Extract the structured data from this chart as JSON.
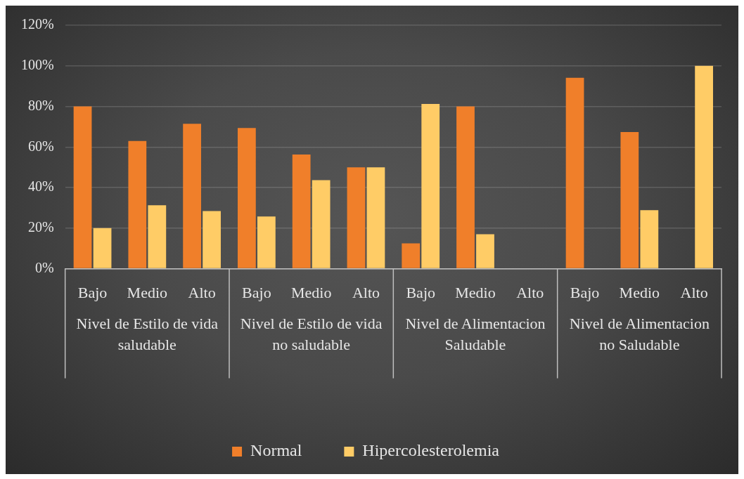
{
  "chart_data": {
    "type": "bar",
    "categories": [
      "Bajo",
      "Medio",
      "Alto",
      "Bajo",
      "Medio",
      "Alto",
      "Bajo",
      "Medio",
      "Alto",
      "Bajo",
      "Medio",
      "Alto"
    ],
    "series": [
      {
        "name": "Normal",
        "color": "#f07f2a",
        "values": [
          80,
          63,
          71.4,
          69.4,
          56.3,
          50,
          12.5,
          80,
          0,
          94.1,
          67.4,
          0
        ]
      },
      {
        "name": "Hipercolesterolemia",
        "color": "#ffcc66",
        "values": [
          20,
          31.3,
          28.4,
          25.7,
          43.7,
          50,
          81.2,
          17,
          0,
          0,
          28.9,
          100
        ]
      }
    ],
    "annotations": [
      "Nivel de Estilo de vida saludable",
      "Nivel de Estilo de vida no saludable",
      "Nivel de Alimentacion Saludable",
      "Nivel de Alimentacion no Saludable"
    ],
    "ylim": [
      0,
      120
    ],
    "yticks": [
      {
        "value": 0,
        "label": "0%"
      },
      {
        "value": 20,
        "label": "20%"
      },
      {
        "value": 40,
        "label": "40%"
      },
      {
        "value": 60,
        "label": "60%"
      },
      {
        "value": 80,
        "label": "80%"
      },
      {
        "value": 100,
        "label": "100%"
      },
      {
        "value": 120,
        "label": "120%"
      }
    ],
    "grid": "y",
    "legend": "bottom"
  }
}
